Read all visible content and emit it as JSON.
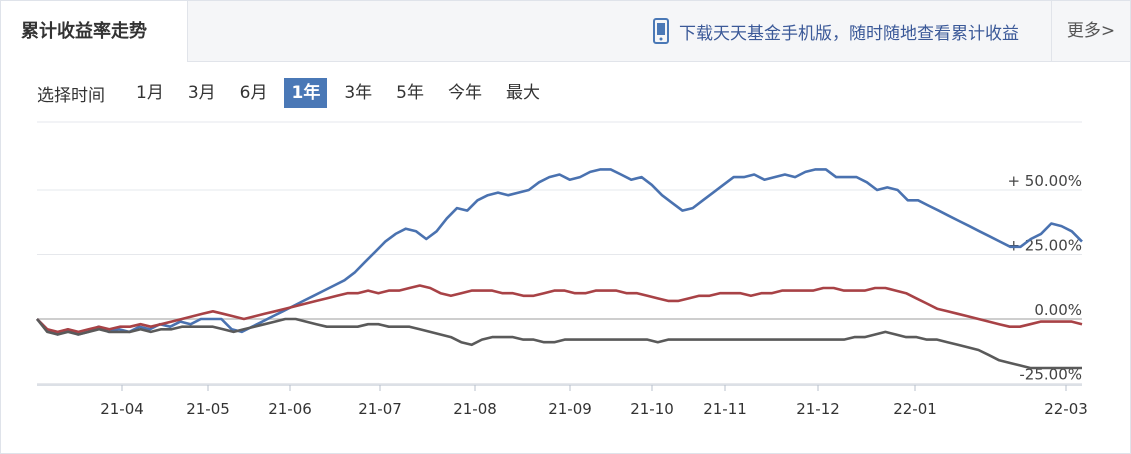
{
  "header": {
    "title": "累计收益率走势",
    "promo_text": "下载天天基金手机版，随时随地查看累计收益",
    "more_label": "更多>"
  },
  "range": {
    "label": "选择时间",
    "options": [
      "1月",
      "3月",
      "6月",
      "1年",
      "3年",
      "5年",
      "今年",
      "最大"
    ],
    "selected_index": 3
  },
  "colors": {
    "series_a": "#4a72b0",
    "series_b": "#a84246",
    "series_c": "#5a5a5a",
    "accent": "#4a78b6"
  },
  "chart_data": {
    "type": "line",
    "x_ticks": [
      "21-04",
      "21-05",
      "21-06",
      "21-07",
      "21-08",
      "21-09",
      "21-10",
      "21-11",
      "21-12",
      "22-01",
      "22-03"
    ],
    "y_ticks": [
      "+ 50.00%",
      "+ 25.00%",
      "0.00%",
      "-25.00%"
    ],
    "y_tick_values": [
      50,
      25,
      0,
      -25
    ],
    "ylim": [
      -26,
      62
    ],
    "grid": true,
    "series": [
      {
        "color": "#4a72b0",
        "values": [
          0,
          -4,
          -6,
          -4,
          -6,
          -5,
          -3,
          -5,
          -4,
          -5,
          -3,
          -4,
          -2,
          -3,
          -1,
          -2,
          0,
          0,
          0,
          -4,
          -5,
          -3,
          -1,
          1,
          3,
          5,
          7,
          9,
          11,
          13,
          15,
          18,
          22,
          26,
          30,
          33,
          35,
          34,
          31,
          34,
          39,
          43,
          42,
          46,
          48,
          49,
          48,
          49,
          50,
          53,
          55,
          56,
          54,
          55,
          57,
          58,
          58,
          56,
          54,
          55,
          52,
          48,
          45,
          42,
          43,
          46,
          49,
          52,
          55,
          55,
          56,
          54,
          55,
          56,
          55,
          57,
          58,
          58,
          55,
          55,
          55,
          53,
          50,
          51,
          50,
          46,
          46,
          44,
          42,
          40,
          38,
          36,
          34,
          32,
          30,
          28,
          28,
          31,
          33,
          37,
          36,
          34,
          30
        ]
      },
      {
        "color": "#a84246",
        "values": [
          0,
          -4,
          -5,
          -4,
          -5,
          -4,
          -3,
          -4,
          -3,
          -3,
          -2,
          -3,
          -2,
          -1,
          0,
          1,
          2,
          3,
          2,
          1,
          0,
          1,
          2,
          3,
          4,
          5,
          6,
          7,
          8,
          9,
          10,
          10,
          11,
          10,
          11,
          11,
          12,
          13,
          12,
          10,
          9,
          10,
          11,
          11,
          11,
          10,
          10,
          9,
          9,
          10,
          11,
          11,
          10,
          10,
          11,
          11,
          11,
          10,
          10,
          9,
          8,
          7,
          7,
          8,
          9,
          9,
          10,
          10,
          10,
          9,
          10,
          10,
          11,
          11,
          11,
          11,
          12,
          12,
          11,
          11,
          11,
          12,
          12,
          11,
          10,
          8,
          6,
          4,
          3,
          2,
          1,
          0,
          -1,
          -2,
          -3,
          -3,
          -2,
          -1,
          -1,
          -1,
          -1,
          -2
        ]
      },
      {
        "color": "#5a5a5a",
        "values": [
          0,
          -5,
          -6,
          -5,
          -6,
          -5,
          -4,
          -5,
          -5,
          -5,
          -4,
          -5,
          -4,
          -4,
          -3,
          -3,
          -3,
          -3,
          -4,
          -5,
          -4,
          -3,
          -2,
          -1,
          0,
          0,
          -1,
          -2,
          -3,
          -3,
          -3,
          -3,
          -2,
          -2,
          -3,
          -3,
          -3,
          -4,
          -5,
          -6,
          -7,
          -9,
          -10,
          -8,
          -7,
          -7,
          -7,
          -8,
          -8,
          -9,
          -9,
          -8,
          -8,
          -8,
          -8,
          -8,
          -8,
          -8,
          -8,
          -8,
          -9,
          -8,
          -8,
          -8,
          -8,
          -8,
          -8,
          -8,
          -8,
          -8,
          -8,
          -8,
          -8,
          -8,
          -8,
          -8,
          -8,
          -8,
          -8,
          -7,
          -7,
          -6,
          -5,
          -6,
          -7,
          -7,
          -8,
          -8,
          -9,
          -10,
          -11,
          -12,
          -14,
          -16,
          -17,
          -18,
          -19,
          -19,
          -19,
          -19,
          -19,
          -19
        ]
      }
    ]
  }
}
